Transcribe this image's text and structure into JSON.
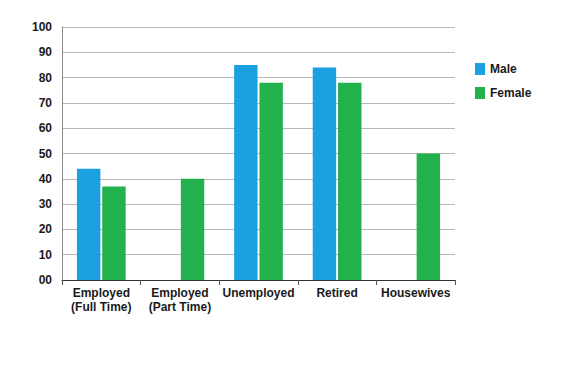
{
  "chart_data": {
    "type": "bar",
    "categories": [
      "Employed\n(Full Time)",
      "Employed\n(Part Time)",
      "Unemployed",
      "Retired",
      "Housewives"
    ],
    "series": [
      {
        "name": "Male",
        "color": "#1ba1e2",
        "values": [
          44,
          null,
          85,
          84,
          null
        ]
      },
      {
        "name": "Female",
        "color": "#23b14d",
        "values": [
          37,
          40,
          78,
          78,
          50
        ]
      }
    ],
    "ylim": [
      0,
      100
    ],
    "yticks": [
      {
        "value": 0,
        "label": "00"
      },
      10,
      20,
      30,
      40,
      50,
      60,
      70,
      80,
      90,
      100
    ],
    "grid": true,
    "legend": "right"
  }
}
